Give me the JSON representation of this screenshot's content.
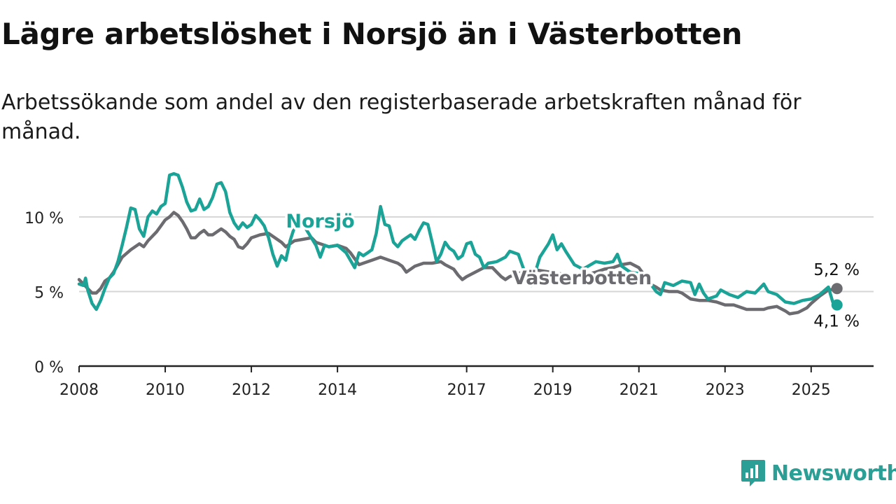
{
  "header": {
    "title": "Lägre arbetslöshet i Norsjö än i Västerbotten",
    "subtitle": "Arbetssökande som andel av den registerbaserade arbetskraften månad för månad."
  },
  "brand": {
    "name": "Newsworthy",
    "icon": "newsworthy-logo-icon",
    "color": "#2b9e95"
  },
  "chart_data": {
    "type": "line",
    "title": "Lägre arbetslöshet i Norsjö än i Västerbotten",
    "subtitle": "Arbetssökande som andel av den registerbaserade arbetskraften månad för månad.",
    "xlim": [
      2008,
      2026.45
    ],
    "ylim": [
      0,
      10.7
    ],
    "x_ticks": [
      2008,
      2010,
      2012,
      2014,
      2017,
      2019,
      2021,
      2023,
      2025
    ],
    "x_tick_labels": [
      "2008",
      "2010",
      "2012",
      "2014",
      "2017",
      "2019",
      "2021",
      "2023",
      "2025"
    ],
    "y_ticks": [
      0,
      5,
      10
    ],
    "y_tick_labels": [
      "0 %",
      "5 %",
      "10 %"
    ],
    "grid": "horizontal",
    "series": [
      {
        "name": "Västerbotten",
        "color": "#6b6b70",
        "end_label": "5,2 %",
        "points": [
          [
            2008.0,
            5.8
          ],
          [
            2008.1,
            5.5
          ],
          [
            2008.2,
            5.2
          ],
          [
            2008.3,
            4.9
          ],
          [
            2008.4,
            4.9
          ],
          [
            2008.5,
            5.2
          ],
          [
            2008.6,
            5.7
          ],
          [
            2008.7,
            5.9
          ],
          [
            2008.8,
            6.3
          ],
          [
            2008.9,
            6.8
          ],
          [
            2009.0,
            7.3
          ],
          [
            2009.2,
            7.8
          ],
          [
            2009.4,
            8.2
          ],
          [
            2009.5,
            8.0
          ],
          [
            2009.6,
            8.4
          ],
          [
            2009.8,
            9.0
          ],
          [
            2009.9,
            9.4
          ],
          [
            2010.0,
            9.8
          ],
          [
            2010.1,
            10.0
          ],
          [
            2010.2,
            10.3
          ],
          [
            2010.3,
            10.1
          ],
          [
            2010.4,
            9.7
          ],
          [
            2010.5,
            9.2
          ],
          [
            2010.6,
            8.6
          ],
          [
            2010.7,
            8.6
          ],
          [
            2010.8,
            8.9
          ],
          [
            2010.9,
            9.1
          ],
          [
            2011.0,
            8.8
          ],
          [
            2011.1,
            8.8
          ],
          [
            2011.2,
            9.0
          ],
          [
            2011.3,
            9.2
          ],
          [
            2011.4,
            9.0
          ],
          [
            2011.5,
            8.7
          ],
          [
            2011.6,
            8.5
          ],
          [
            2011.7,
            8.0
          ],
          [
            2011.8,
            7.9
          ],
          [
            2011.9,
            8.2
          ],
          [
            2012.0,
            8.6
          ],
          [
            2012.2,
            8.8
          ],
          [
            2012.4,
            8.9
          ],
          [
            2012.5,
            8.7
          ],
          [
            2012.7,
            8.3
          ],
          [
            2012.8,
            8.0
          ],
          [
            2012.9,
            8.2
          ],
          [
            2013.0,
            8.4
          ],
          [
            2013.2,
            8.5
          ],
          [
            2013.4,
            8.6
          ],
          [
            2013.5,
            8.3
          ],
          [
            2013.7,
            8.1
          ],
          [
            2013.8,
            8.0
          ],
          [
            2014.0,
            8.1
          ],
          [
            2014.2,
            7.9
          ],
          [
            2014.3,
            7.6
          ],
          [
            2014.4,
            7.2
          ],
          [
            2014.5,
            6.8
          ],
          [
            2014.6,
            6.9
          ],
          [
            2014.8,
            7.1
          ],
          [
            2015.0,
            7.3
          ],
          [
            2015.2,
            7.1
          ],
          [
            2015.4,
            6.9
          ],
          [
            2015.5,
            6.7
          ],
          [
            2015.6,
            6.3
          ],
          [
            2015.8,
            6.7
          ],
          [
            2016.0,
            6.9
          ],
          [
            2016.2,
            6.9
          ],
          [
            2016.4,
            7.0
          ],
          [
            2016.5,
            6.8
          ],
          [
            2016.7,
            6.5
          ],
          [
            2016.8,
            6.1
          ],
          [
            2016.9,
            5.8
          ],
          [
            2017.0,
            6.0
          ],
          [
            2017.2,
            6.3
          ],
          [
            2017.4,
            6.6
          ],
          [
            2017.6,
            6.6
          ],
          [
            2017.7,
            6.3
          ],
          [
            2017.8,
            6.0
          ],
          [
            2017.9,
            5.8
          ],
          [
            2018.0,
            6.0
          ],
          [
            2018.2,
            6.2
          ],
          [
            2018.4,
            6.4
          ],
          [
            2018.5,
            6.5
          ],
          [
            2019.6,
            6.0
          ],
          [
            2020.0,
            6.3
          ],
          [
            2020.2,
            6.5
          ],
          [
            2020.4,
            6.6
          ],
          [
            2020.6,
            6.8
          ],
          [
            2020.8,
            6.9
          ],
          [
            2021.0,
            6.6
          ],
          [
            2021.1,
            6.2
          ],
          [
            2021.2,
            5.6
          ],
          [
            2021.4,
            5.3
          ],
          [
            2021.5,
            5.1
          ],
          [
            2021.7,
            5.0
          ],
          [
            2021.9,
            5.0
          ],
          [
            2022.0,
            4.9
          ],
          [
            2022.2,
            4.5
          ],
          [
            2022.4,
            4.4
          ],
          [
            2022.6,
            4.4
          ],
          [
            2022.8,
            4.3
          ],
          [
            2023.0,
            4.1
          ],
          [
            2023.2,
            4.1
          ],
          [
            2023.4,
            3.9
          ],
          [
            2023.5,
            3.8
          ],
          [
            2023.7,
            3.8
          ],
          [
            2023.9,
            3.8
          ],
          [
            2024.0,
            3.9
          ],
          [
            2024.2,
            4.0
          ],
          [
            2024.4,
            3.7
          ],
          [
            2024.5,
            3.5
          ],
          [
            2024.7,
            3.6
          ],
          [
            2024.9,
            3.9
          ],
          [
            2025.0,
            4.2
          ],
          [
            2025.2,
            4.7
          ],
          [
            2025.4,
            5.1
          ],
          [
            2025.6,
            5.2
          ]
        ]
      },
      {
        "name": "Norsjö",
        "color": "#1aa396",
        "end_label": "4,1 %",
        "points": [
          [
            2008.0,
            5.5
          ],
          [
            2008.1,
            5.4
          ],
          [
            2008.15,
            5.9
          ],
          [
            2008.2,
            5.1
          ],
          [
            2008.3,
            4.2
          ],
          [
            2008.4,
            3.8
          ],
          [
            2008.5,
            4.4
          ],
          [
            2008.6,
            5.2
          ],
          [
            2008.7,
            5.9
          ],
          [
            2008.8,
            6.2
          ],
          [
            2008.9,
            7.0
          ],
          [
            2009.0,
            8.1
          ],
          [
            2009.1,
            9.3
          ],
          [
            2009.2,
            10.6
          ],
          [
            2009.3,
            10.5
          ],
          [
            2009.4,
            9.2
          ],
          [
            2009.5,
            8.7
          ],
          [
            2009.6,
            10.0
          ],
          [
            2009.7,
            10.4
          ],
          [
            2009.8,
            10.2
          ],
          [
            2009.9,
            10.7
          ],
          [
            2010.0,
            10.9
          ],
          [
            2010.1,
            12.8
          ],
          [
            2010.2,
            12.9
          ],
          [
            2010.3,
            12.8
          ],
          [
            2010.4,
            12.0
          ],
          [
            2010.5,
            11.0
          ],
          [
            2010.6,
            10.4
          ],
          [
            2010.7,
            10.5
          ],
          [
            2010.8,
            11.2
          ],
          [
            2010.9,
            10.5
          ],
          [
            2011.0,
            10.7
          ],
          [
            2011.1,
            11.3
          ],
          [
            2011.2,
            12.2
          ],
          [
            2011.3,
            12.3
          ],
          [
            2011.4,
            11.7
          ],
          [
            2011.5,
            10.3
          ],
          [
            2011.6,
            9.6
          ],
          [
            2011.7,
            9.2
          ],
          [
            2011.8,
            9.6
          ],
          [
            2011.9,
            9.3
          ],
          [
            2012.0,
            9.5
          ],
          [
            2012.1,
            10.1
          ],
          [
            2012.2,
            9.8
          ],
          [
            2012.3,
            9.4
          ],
          [
            2012.4,
            8.6
          ],
          [
            2012.5,
            7.5
          ],
          [
            2012.6,
            6.7
          ],
          [
            2012.7,
            7.4
          ],
          [
            2012.8,
            7.1
          ],
          [
            2012.9,
            8.4
          ],
          [
            2013.0,
            9.3
          ],
          [
            2013.1,
            10.0
          ],
          [
            2013.5,
            8.1
          ],
          [
            2013.6,
            7.3
          ],
          [
            2013.7,
            8.1
          ],
          [
            2013.8,
            8.0
          ],
          [
            2014.0,
            8.1
          ],
          [
            2014.2,
            7.6
          ],
          [
            2014.4,
            6.6
          ],
          [
            2014.5,
            7.6
          ],
          [
            2014.6,
            7.4
          ],
          [
            2014.7,
            7.6
          ],
          [
            2014.8,
            7.8
          ],
          [
            2014.9,
            8.9
          ],
          [
            2015.0,
            10.7
          ],
          [
            2015.1,
            9.5
          ],
          [
            2015.2,
            9.4
          ],
          [
            2015.3,
            8.3
          ],
          [
            2015.4,
            8.0
          ],
          [
            2015.5,
            8.4
          ],
          [
            2015.6,
            8.6
          ],
          [
            2015.7,
            8.8
          ],
          [
            2015.8,
            8.5
          ],
          [
            2015.9,
            9.1
          ],
          [
            2016.0,
            9.6
          ],
          [
            2016.1,
            9.5
          ],
          [
            2016.2,
            8.3
          ],
          [
            2016.3,
            7.0
          ],
          [
            2016.4,
            7.5
          ],
          [
            2016.5,
            8.3
          ],
          [
            2016.6,
            7.9
          ],
          [
            2016.7,
            7.7
          ],
          [
            2016.8,
            7.2
          ],
          [
            2016.9,
            7.4
          ],
          [
            2017.0,
            8.2
          ],
          [
            2017.1,
            8.3
          ],
          [
            2017.2,
            7.5
          ],
          [
            2017.3,
            7.3
          ],
          [
            2017.4,
            6.6
          ],
          [
            2017.5,
            6.9
          ],
          [
            2017.7,
            7.0
          ],
          [
            2017.9,
            7.3
          ],
          [
            2018.0,
            7.7
          ],
          [
            2018.2,
            7.5
          ],
          [
            2018.3,
            6.7
          ],
          [
            2018.4,
            5.9
          ],
          [
            2018.5,
            5.4
          ],
          [
            2018.7,
            7.3
          ],
          [
            2018.9,
            8.2
          ],
          [
            2019.0,
            8.8
          ],
          [
            2019.1,
            7.8
          ],
          [
            2019.2,
            8.2
          ],
          [
            2019.3,
            7.7
          ],
          [
            2019.5,
            6.8
          ],
          [
            2019.7,
            6.5
          ],
          [
            2020.0,
            7.0
          ],
          [
            2020.2,
            6.9
          ],
          [
            2020.4,
            7.0
          ],
          [
            2020.5,
            7.5
          ],
          [
            2020.6,
            6.7
          ],
          [
            2020.8,
            6.3
          ],
          [
            2021.0,
            6.2
          ],
          [
            2021.2,
            5.6
          ],
          [
            2021.3,
            5.4
          ],
          [
            2021.4,
            5.0
          ],
          [
            2021.5,
            4.8
          ],
          [
            2021.6,
            5.6
          ],
          [
            2021.8,
            5.4
          ],
          [
            2022.0,
            5.7
          ],
          [
            2022.2,
            5.6
          ],
          [
            2022.3,
            4.8
          ],
          [
            2022.4,
            5.5
          ],
          [
            2022.5,
            4.9
          ],
          [
            2022.6,
            4.5
          ],
          [
            2022.8,
            4.7
          ],
          [
            2022.9,
            5.1
          ],
          [
            2023.1,
            4.8
          ],
          [
            2023.3,
            4.6
          ],
          [
            2023.5,
            5.0
          ],
          [
            2023.7,
            4.9
          ],
          [
            2023.8,
            5.2
          ],
          [
            2023.9,
            5.5
          ],
          [
            2024.0,
            5.0
          ],
          [
            2024.2,
            4.8
          ],
          [
            2024.4,
            4.3
          ],
          [
            2024.6,
            4.2
          ],
          [
            2024.8,
            4.4
          ],
          [
            2025.0,
            4.5
          ],
          [
            2025.2,
            4.8
          ],
          [
            2025.4,
            5.3
          ],
          [
            2025.5,
            4.3
          ],
          [
            2025.6,
            4.1
          ]
        ]
      }
    ]
  }
}
